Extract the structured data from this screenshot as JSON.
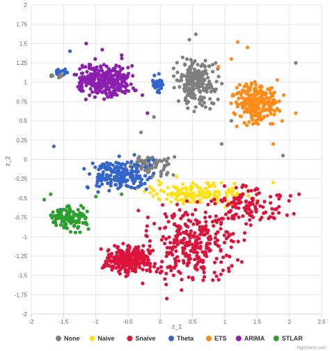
{
  "chart_data": {
    "type": "scatter",
    "title": "",
    "xlabel": "z_1",
    "ylabel": "z_2",
    "xlim": [
      -2,
      2.5
    ],
    "ylim": [
      -2,
      2
    ],
    "xticks": [
      -2,
      -1.5,
      -1,
      -0.5,
      0,
      0.5,
      1,
      1.5,
      2,
      2.5
    ],
    "yticks": [
      -2,
      -1.75,
      -1.5,
      -1.25,
      -1,
      -0.75,
      -0.5,
      -0.25,
      0,
      0.25,
      0.5,
      0.75,
      1,
      1.25,
      1.5,
      1.75,
      2
    ],
    "xtick_labels": [
      "-2",
      "-1.5",
      "-1",
      "-0.5",
      "0",
      "0.5",
      "1",
      "1.5",
      "2",
      "2.5"
    ],
    "ytick_labels": [
      "-2",
      "-1.75",
      "-1.5",
      "-1.25",
      "-1",
      "-0.75",
      "-0.5",
      "-0.25",
      "0",
      "0.25",
      "0.5",
      "0.75",
      "1",
      "1.25",
      "1.5",
      "1.75",
      "2"
    ],
    "grid": true,
    "legend": "bottom-center",
    "credits": "Highcharts.com",
    "series": [
      {
        "name": "None",
        "color": "#7f7f7f",
        "clusters": [
          {
            "x": [
              0.1,
              1.0
            ],
            "y": [
              0.6,
              1.4
            ],
            "n": 220
          },
          {
            "x": [
              -0.6,
              0.3
            ],
            "y": [
              -0.3,
              0.15
            ],
            "n": 70
          },
          {
            "x": [
              -1.75,
              -1.45
            ],
            "y": [
              1.05,
              1.12
            ],
            "n": 15
          }
        ],
        "points": [
          [
            0.55,
            1.62
          ],
          [
            0.45,
            1.55
          ],
          [
            0.95,
            0.2
          ],
          [
            1.1,
            0.5
          ],
          [
            -0.3,
            0.35
          ],
          [
            0.2,
            -0.2
          ],
          [
            2.1,
            1.25
          ],
          [
            1.9,
            0.05
          ],
          [
            -0.1,
            0.55
          ]
        ]
      },
      {
        "name": "Naive",
        "color": "#ffe119",
        "clusters": [
          {
            "x": [
              -0.6,
              1.7
            ],
            "y": [
              -0.65,
              -0.25
            ],
            "n": 150
          }
        ],
        "points": [
          [
            1.75,
            -0.3
          ],
          [
            0.25,
            -0.22
          ]
        ]
      },
      {
        "name": "Snaive",
        "color": "#dc143c",
        "clusters": [
          {
            "x": [
              -1.0,
              0.0
            ],
            "y": [
              -1.55,
              -1.05
            ],
            "n": 260
          },
          {
            "x": [
              -0.5,
              1.5
            ],
            "y": [
              -1.8,
              -0.4
            ],
            "n": 300
          },
          {
            "x": [
              0.5,
              2.2
            ],
            "y": [
              -0.9,
              -0.25
            ],
            "n": 120
          }
        ],
        "points": [
          [
            1.4,
            -0.85
          ],
          [
            1.2,
            -1.3
          ],
          [
            0.1,
            -1.8
          ],
          [
            2.15,
            -0.45
          ]
        ]
      },
      {
        "name": "Theta",
        "color": "#3366cc",
        "clusters": [
          {
            "x": [
              -1.3,
              0.0
            ],
            "y": [
              -0.5,
              0.1
            ],
            "n": 190
          },
          {
            "x": [
              -0.2,
              0.1
            ],
            "y": [
              0.8,
              1.15
            ],
            "n": 30
          },
          {
            "x": [
              -1.7,
              -1.3
            ],
            "y": [
              1.05,
              1.2
            ],
            "n": 12
          }
        ],
        "points": [
          [
            -1.65,
            0.17
          ],
          [
            -1.4,
            1.4
          ],
          [
            -1.55,
            -0.65
          ]
        ]
      },
      {
        "name": "ETS",
        "color": "#ff8c1a",
        "clusters": [
          {
            "x": [
              1.0,
              2.0
            ],
            "y": [
              0.35,
              1.1
            ],
            "n": 240
          }
        ],
        "points": [
          [
            1.2,
            1.52
          ],
          [
            1.35,
            1.45
          ],
          [
            1.1,
            1.3
          ],
          [
            0.9,
            1.2
          ],
          [
            1.75,
            0.2
          ],
          [
            2.1,
            0.6
          ]
        ]
      },
      {
        "name": "ARIMA",
        "color": "#8b1faf",
        "clusters": [
          {
            "x": [
              -1.5,
              -0.2
            ],
            "y": [
              0.7,
              1.35
            ],
            "n": 300
          }
        ],
        "points": [
          [
            -1.15,
            1.5
          ],
          [
            -0.9,
            1.42
          ],
          [
            -0.6,
            1.35
          ],
          [
            -0.2,
            0.6
          ]
        ]
      },
      {
        "name": "STLAR",
        "color": "#2ca02c",
        "clusters": [
          {
            "x": [
              -1.85,
              -1.0
            ],
            "y": [
              -1.0,
              -0.5
            ],
            "n": 120
          }
        ],
        "points": [
          [
            -1.8,
            -0.52
          ],
          [
            -1.7,
            -0.45
          ],
          [
            -1.0,
            -0.48
          ],
          [
            -0.6,
            -0.45
          ]
        ]
      }
    ]
  }
}
